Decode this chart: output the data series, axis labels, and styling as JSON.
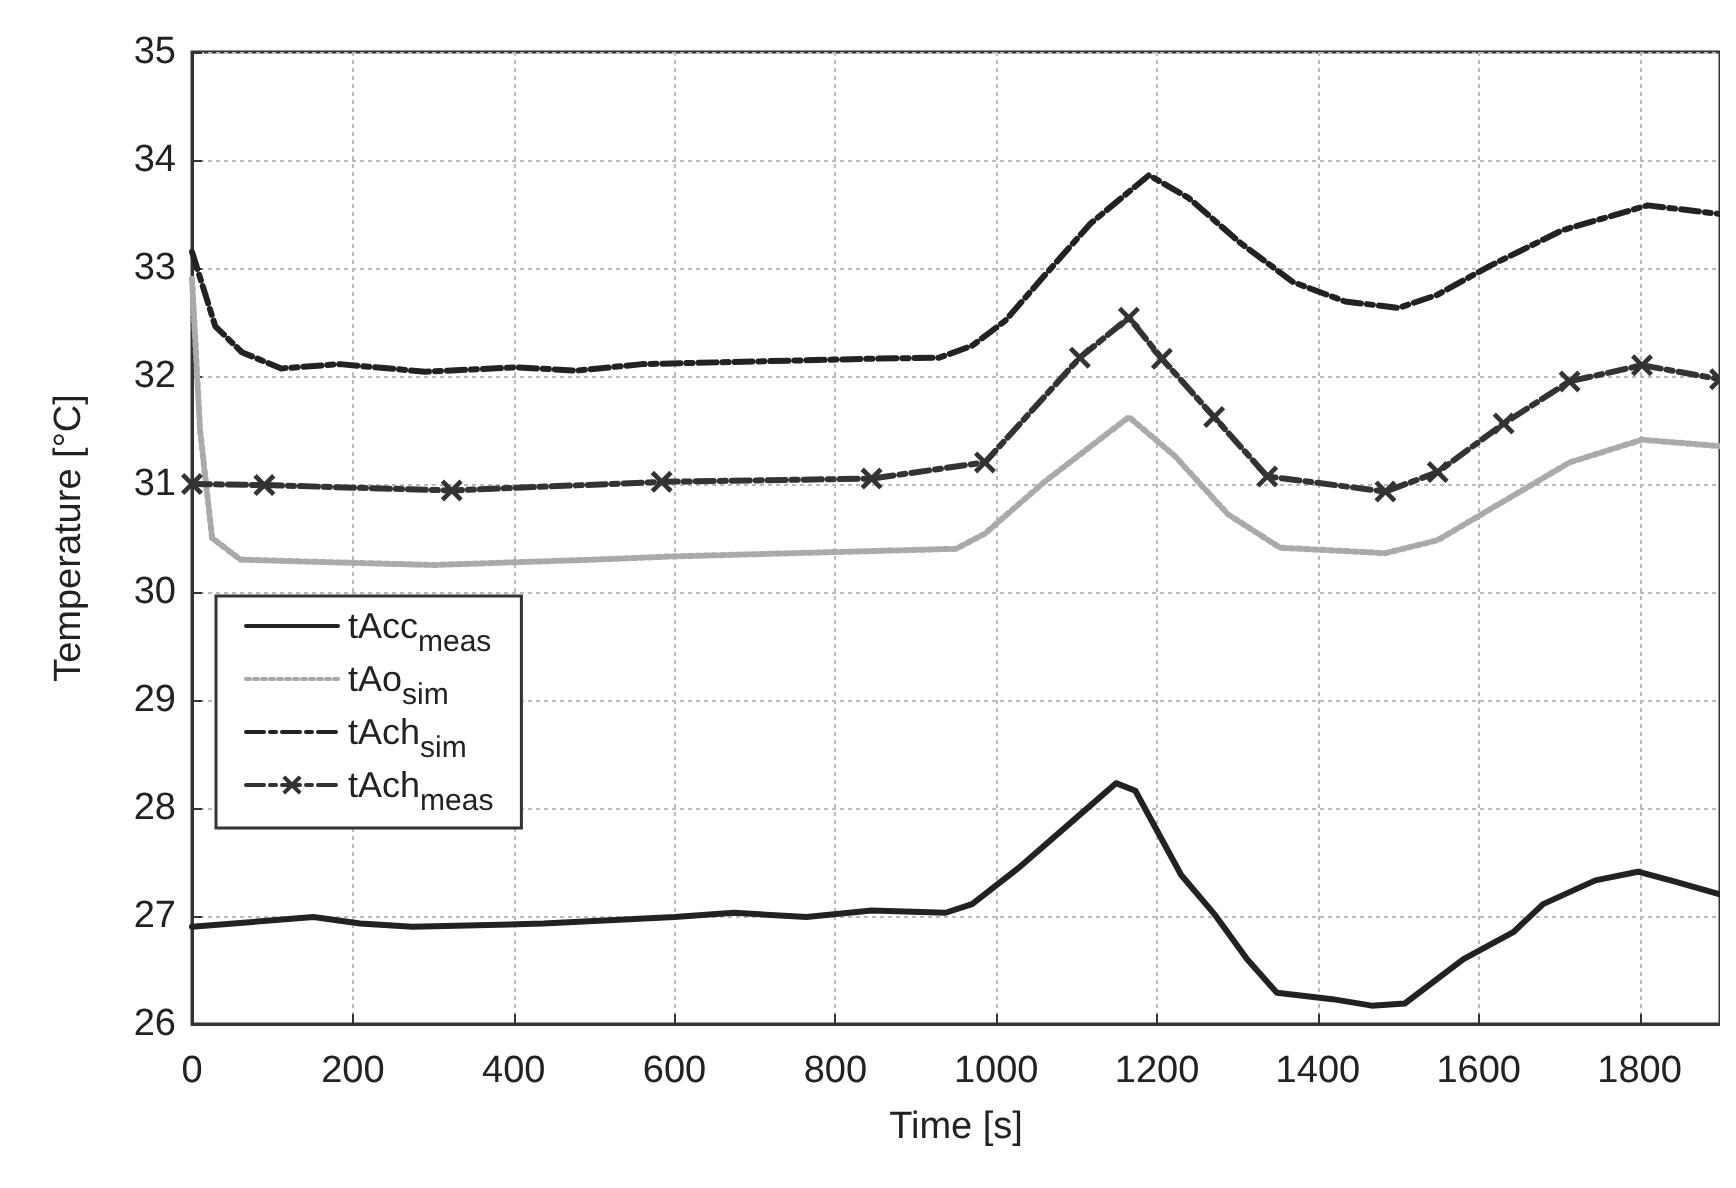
{
  "chart_data": {
    "type": "line",
    "xlabel": "Time [s]",
    "ylabel": "Temperature [°C]",
    "xlim": [
      0,
      1900
    ],
    "xticks": [
      0,
      200,
      400,
      600,
      800,
      1000,
      1200,
      1400,
      1600,
      1800
    ],
    "ylim": [
      26,
      35
    ],
    "yticks": [
      26,
      27,
      28,
      29,
      30,
      31,
      32,
      33,
      34,
      35
    ],
    "grid": true,
    "legend": "left",
    "series": [
      {
        "name": "tAcc$_{meas}$",
        "color": "#222222",
        "line_style": "solid",
        "marker": "none",
        "x": [
          0,
          151,
          209,
          274,
          437,
          600,
          674,
          764,
          845,
          937,
          970,
          1027,
          1092,
          1149,
          1173,
          1230,
          1271,
          1312,
          1349,
          1418,
          1467,
          1508,
          1581,
          1643,
          1680,
          1745,
          1798,
          1843,
          1900
        ],
        "values": [
          26.9,
          26.99,
          26.93,
          26.9,
          26.93,
          26.99,
          27.03,
          26.99,
          27.05,
          27.03,
          27.11,
          27.44,
          27.86,
          28.23,
          28.16,
          27.38,
          27.02,
          26.6,
          26.29,
          26.23,
          26.17,
          26.19,
          26.6,
          26.85,
          27.11,
          27.33,
          27.41,
          27.32,
          27.2
        ]
      },
      {
        "name": "tAo$_{sim}$",
        "color": "#aaaaaa",
        "line_style": "dotted",
        "marker": "none",
        "x": [
          0,
          10,
          25,
          60,
          150,
          300,
          500,
          600,
          800,
          950,
          986,
          1060,
          1165,
          1222,
          1288,
          1353,
          1484,
          1549,
          1631,
          1713,
          1803,
          1900
        ],
        "values": [
          32.9,
          31.5,
          30.5,
          30.3,
          30.28,
          30.25,
          30.3,
          30.33,
          30.37,
          30.4,
          30.54,
          31.02,
          31.62,
          31.26,
          30.72,
          30.41,
          30.36,
          30.48,
          30.84,
          31.2,
          31.41,
          31.35
        ]
      },
      {
        "name": "tAch$_{sim}$",
        "color": "#222222",
        "line_style": "dashed",
        "marker": "none",
        "x": [
          0,
          29,
          62,
          111,
          184,
          290,
          404,
          478,
          560,
          845,
          929,
          970,
          1011,
          1060,
          1117,
          1190,
          1239,
          1304,
          1369,
          1434,
          1500,
          1548,
          1614,
          1704,
          1810,
          1900
        ],
        "values": [
          33.15,
          32.46,
          32.22,
          32.07,
          32.11,
          32.04,
          32.08,
          32.05,
          32.11,
          32.16,
          32.17,
          32.28,
          32.51,
          32.93,
          33.41,
          33.86,
          33.65,
          33.23,
          32.87,
          32.69,
          32.63,
          32.75,
          33.02,
          33.35,
          33.58,
          33.5
        ]
      },
      {
        "name": "tAch$_{meas}$",
        "color": "#333333",
        "line_style": "dashed",
        "marker": "cross",
        "x": [
          0,
          90,
          323,
          584,
          845,
          986,
          1104,
          1165,
          1206,
          1271,
          1337,
          1484,
          1549,
          1631,
          1713,
          1803,
          1900
        ],
        "values": [
          31.0,
          30.99,
          30.94,
          31.02,
          31.05,
          31.2,
          32.17,
          32.54,
          32.16,
          31.62,
          31.07,
          30.93,
          31.11,
          31.56,
          31.95,
          32.1,
          31.97
        ]
      }
    ]
  }
}
